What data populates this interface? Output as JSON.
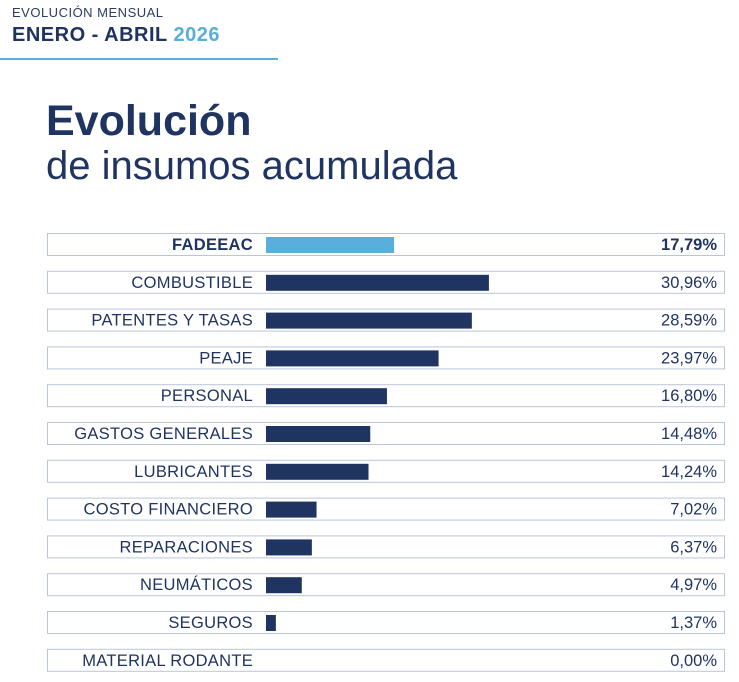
{
  "header": {
    "subtitle": "EVOLUCIÓN MENSUAL",
    "range": "ENERO - ABRIL",
    "year": "2026"
  },
  "title": {
    "line1": "Evolución",
    "line2": "de insumos acumulada"
  },
  "colors": {
    "primary": "#1f3461",
    "highlight": "#5aaedb",
    "row_border": "#b9c6d8"
  },
  "chart_data": {
    "type": "bar",
    "orientation": "horizontal",
    "categories": [
      "FADEEAC",
      "COMBUSTIBLE",
      "PATENTES Y TASAS",
      "PEAJE",
      "PERSONAL",
      "GASTOS GENERALES",
      "LUBRICANTES",
      "COSTO FINANCIERO",
      "REPARACIONES",
      "NEUMÁTICOS",
      "SEGUROS",
      "MATERIAL RODANTE"
    ],
    "values": [
      17.79,
      30.96,
      28.59,
      23.97,
      16.8,
      14.48,
      14.24,
      7.02,
      6.37,
      4.97,
      1.37,
      0.0
    ],
    "value_labels": [
      "17,79%",
      "30,96%",
      "28,59%",
      "23,97%",
      "16,80%",
      "14,48%",
      "14,24%",
      "7,02%",
      "6,37%",
      "4,97%",
      "1,37%",
      "0,00%"
    ],
    "highlight_index": 0,
    "unit": "%"
  }
}
